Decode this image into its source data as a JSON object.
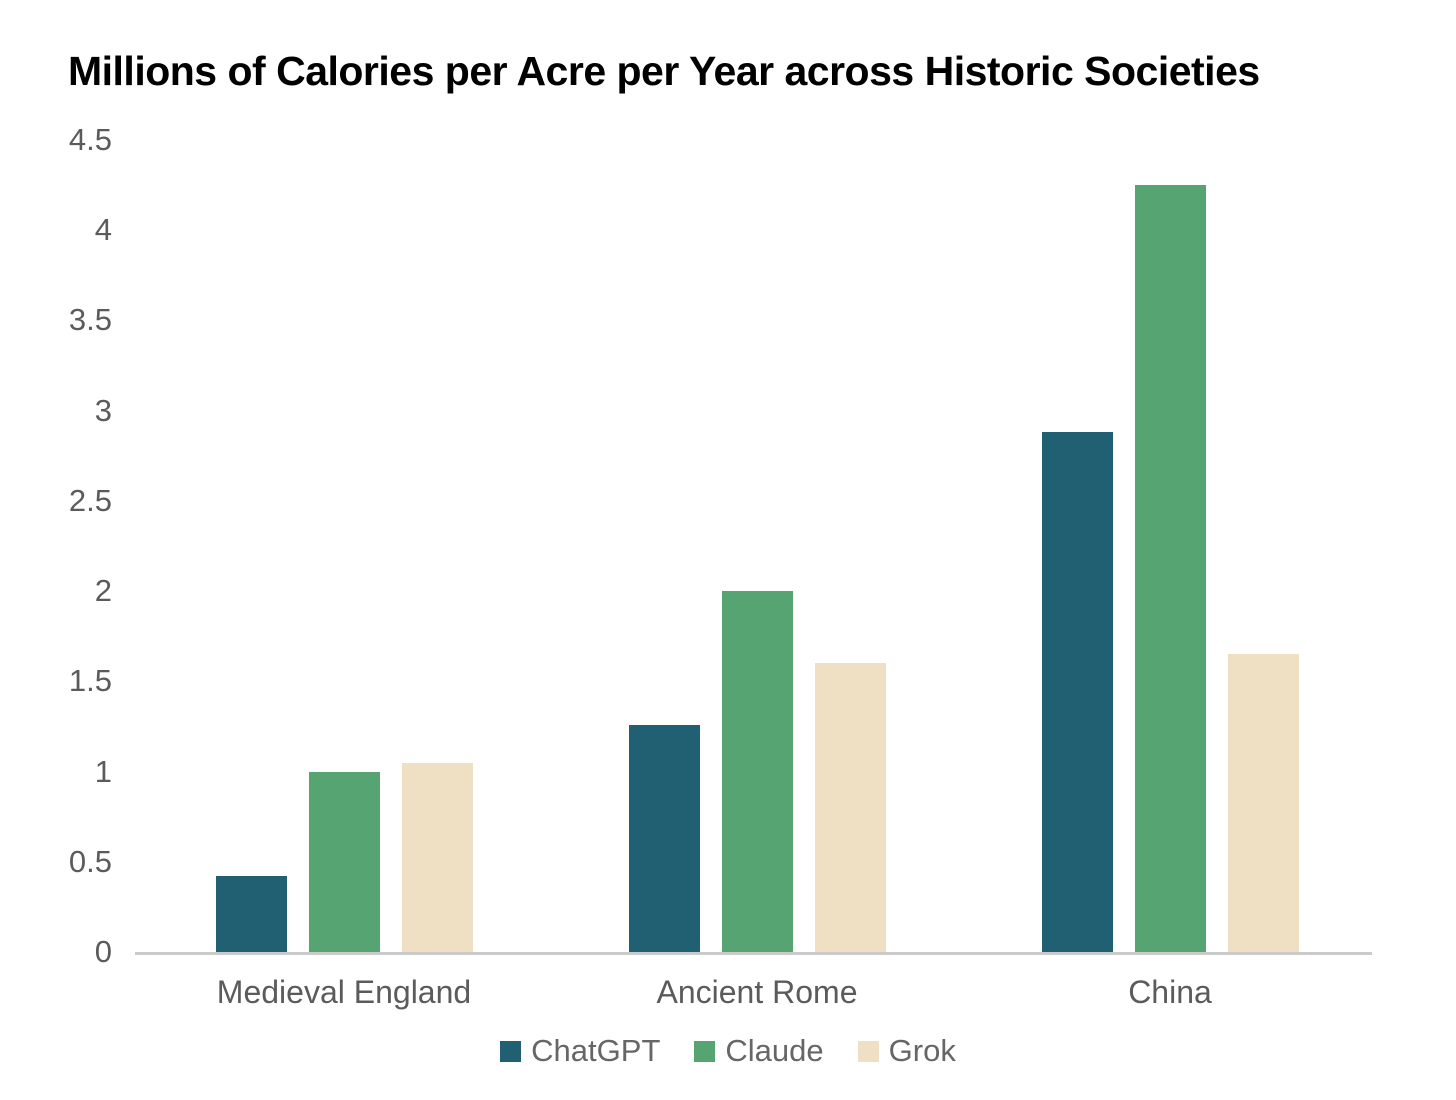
{
  "chart_data": {
    "type": "bar",
    "title": "Millions of Calories per Acre per Year across Historic Societies",
    "xlabel": "",
    "ylabel": "",
    "categories": [
      "Medieval England",
      "Ancient Rome",
      "China"
    ],
    "series": [
      {
        "name": "ChatGPT",
        "color": "#215F73",
        "values": [
          0.42,
          1.26,
          2.88
        ]
      },
      {
        "name": "Claude",
        "color": "#55A471",
        "values": [
          1.0,
          2.0,
          4.25
        ]
      },
      {
        "name": "Grok",
        "color": "#EFDFC3",
        "values": [
          1.05,
          1.6,
          1.65
        ]
      }
    ],
    "ylim": [
      0,
      4.5
    ],
    "yticks": [
      0,
      0.5,
      1,
      1.5,
      2,
      2.5,
      3,
      3.5,
      4,
      4.5
    ],
    "ytick_labels": [
      "0",
      "0.5",
      "1",
      "1.5",
      "2",
      "2.5",
      "3",
      "3.5",
      "4",
      "4.5"
    ],
    "grid": false,
    "legend_position": "bottom",
    "colors": {
      "title_text": "#000000",
      "axis_text": "#5B5B5B",
      "legend_text": "#666666",
      "axis_line": "#CBCBCB",
      "background": "#FFFFFF"
    }
  }
}
